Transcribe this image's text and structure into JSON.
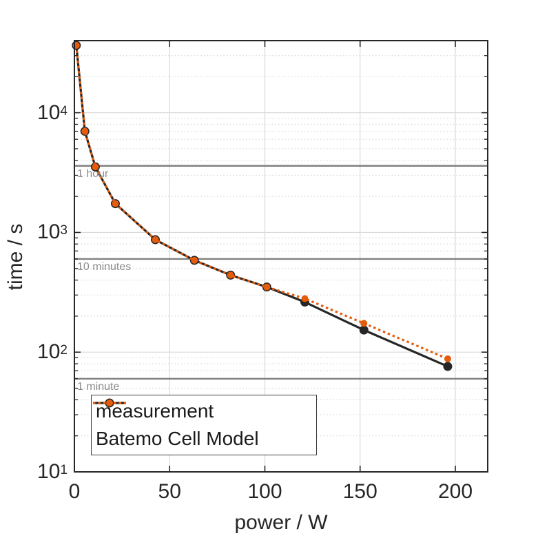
{
  "figure": {
    "background": "#ffffff",
    "kind": "MATLAB-style Ragone plot: discharge time vs constant power"
  },
  "colors": {
    "measurement": "#262626",
    "model": "#e55c0d",
    "reference_line": "#808080",
    "reference_label": "#8c8c8c",
    "grid_major": "#d9d9d9",
    "grid_minor": "#d6d6d6",
    "axis": "#262626",
    "legend_border": "#3c3c3c"
  },
  "chart_data": {
    "type": "line",
    "title": "",
    "xlabel": "power / W",
    "ylabel": "time / s",
    "xlim": [
      0,
      217
    ],
    "ylim": [
      10,
      40000
    ],
    "xscale": "linear",
    "yscale": "log",
    "xticks": [
      0,
      50,
      100,
      150,
      200
    ],
    "ytick_base": "10",
    "ytick_exponents": [
      1,
      2,
      3,
      4
    ],
    "grid": {
      "major": true,
      "minor_y_dotted": true,
      "minor_x": false
    },
    "legend_position": "bottom-left",
    "power_W": [
      1,
      5.5,
      11,
      21.5,
      42.5,
      63,
      82,
      101,
      121,
      152,
      196
    ],
    "series": [
      {
        "name": "measurement",
        "style": "solid",
        "color_key": "measurement",
        "marker": "circle",
        "marker_radius": 6.5,
        "times_s": [
          36500,
          7000,
          3530,
          1740,
          870,
          585,
          440,
          350,
          262,
          153,
          76
        ]
      },
      {
        "name": "Batemo Cell Model",
        "style": "dotted",
        "color_key": "model",
        "marker": "circle",
        "marker_radius": 5,
        "times_s": [
          36500,
          7000,
          3530,
          1740,
          870,
          585,
          440,
          350,
          280,
          174,
          88
        ]
      }
    ],
    "reference_lines": [
      {
        "label": "1 hour",
        "value_s": 3600
      },
      {
        "label": "10 minutes",
        "value_s": 600
      },
      {
        "label": "1 minute",
        "value_s": 60
      }
    ]
  }
}
